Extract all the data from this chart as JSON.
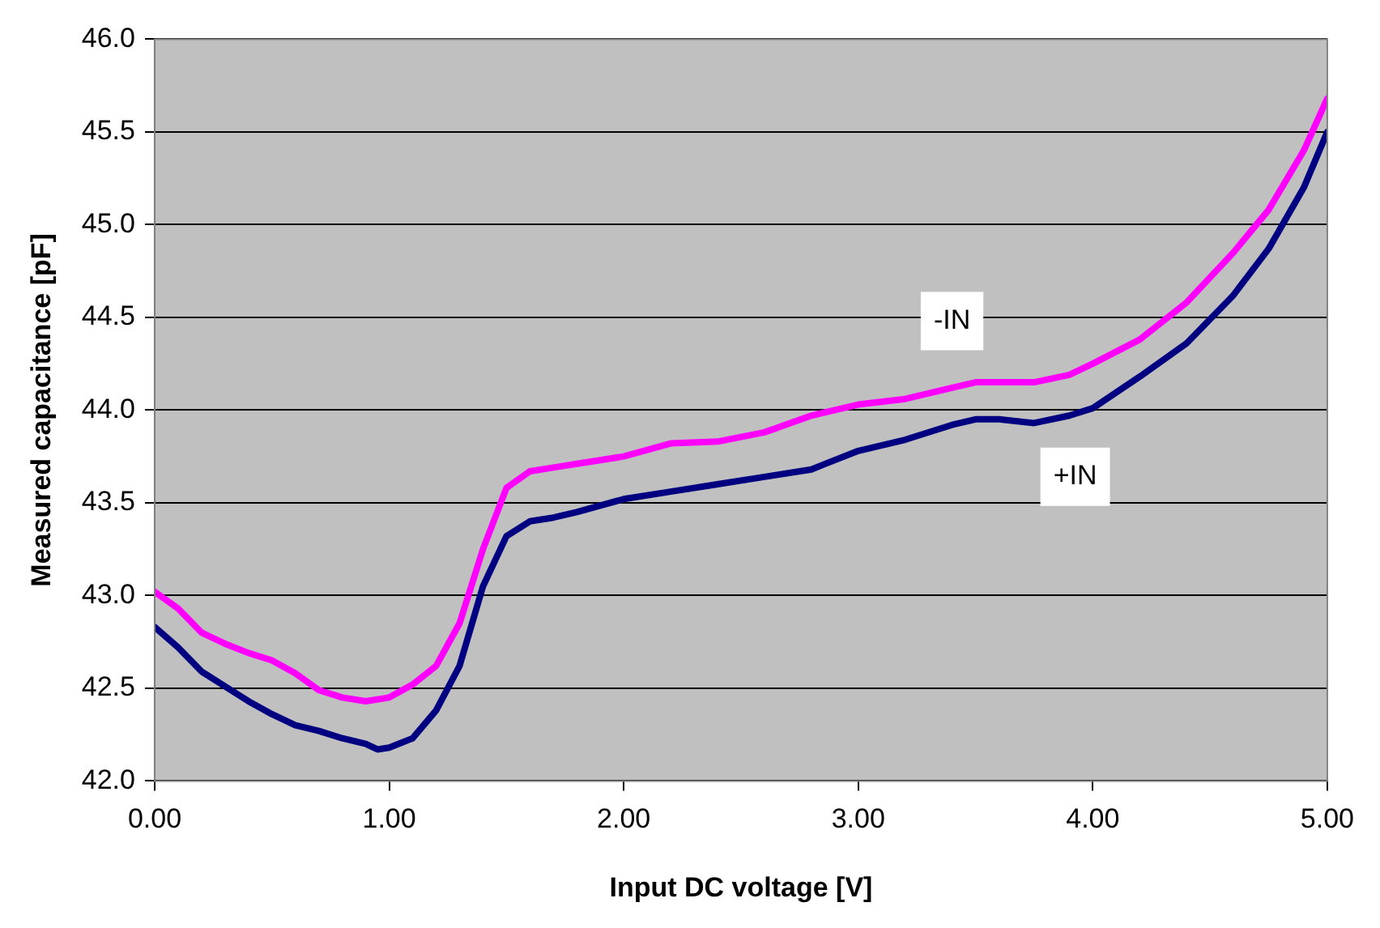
{
  "chart_data": {
    "type": "line",
    "xlabel": "Input DC voltage [V]",
    "ylabel": "Measured capacitance [pF]",
    "xlim": [
      0,
      5
    ],
    "ylim": [
      42,
      46
    ],
    "xticks": [
      {
        "value": 0,
        "label": "0.00"
      },
      {
        "value": 1,
        "label": "1.00"
      },
      {
        "value": 2,
        "label": "2.00"
      },
      {
        "value": 3,
        "label": "3.00"
      },
      {
        "value": 4,
        "label": "4.00"
      },
      {
        "value": 5,
        "label": "5.00"
      }
    ],
    "yticks": [
      {
        "value": 42,
        "label": "42.0"
      },
      {
        "value": 42.5,
        "label": "42.5"
      },
      {
        "value": 43,
        "label": "43.0"
      },
      {
        "value": 43.5,
        "label": "43.5"
      },
      {
        "value": 44,
        "label": "44.0"
      },
      {
        "value": 44.5,
        "label": "44.5"
      },
      {
        "value": 45,
        "label": "45.0"
      },
      {
        "value": 45.5,
        "label": "45.5"
      },
      {
        "value": 46,
        "label": "46.0"
      }
    ],
    "grid": "y",
    "legend": false,
    "marker": "none",
    "line_style": "solid",
    "series": [
      {
        "name": "-IN",
        "color": "#ff00ff",
        "x": [
          0,
          0.1,
          0.2,
          0.3,
          0.4,
          0.5,
          0.6,
          0.7,
          0.8,
          0.9,
          1.0,
          1.1,
          1.2,
          1.3,
          1.4,
          1.5,
          1.6,
          1.7,
          1.8,
          1.9,
          2.0,
          2.2,
          2.4,
          2.6,
          2.8,
          3.0,
          3.2,
          3.4,
          3.5,
          3.75,
          3.9,
          4.0,
          4.2,
          4.4,
          4.6,
          4.75,
          4.9,
          5.0
        ],
        "values": [
          43.02,
          42.93,
          42.8,
          42.74,
          42.69,
          42.65,
          42.58,
          42.49,
          42.45,
          42.43,
          42.45,
          42.52,
          42.62,
          42.85,
          43.25,
          43.58,
          43.67,
          43.69,
          43.71,
          43.73,
          43.75,
          43.82,
          43.83,
          43.88,
          43.97,
          44.03,
          44.06,
          44.12,
          44.15,
          44.15,
          44.19,
          44.25,
          44.38,
          44.58,
          44.85,
          45.08,
          45.4,
          45.68
        ]
      },
      {
        "name": "+IN",
        "color": "#000080",
        "x": [
          0,
          0.1,
          0.2,
          0.3,
          0.4,
          0.5,
          0.6,
          0.7,
          0.8,
          0.9,
          0.95,
          1.0,
          1.1,
          1.2,
          1.3,
          1.4,
          1.5,
          1.6,
          1.7,
          1.8,
          2.0,
          2.2,
          2.4,
          2.6,
          2.8,
          3.0,
          3.2,
          3.4,
          3.5,
          3.6,
          3.75,
          3.9,
          4.0,
          4.2,
          4.4,
          4.6,
          4.75,
          4.9,
          5.0
        ],
        "values": [
          42.83,
          42.72,
          42.59,
          42.51,
          42.43,
          42.36,
          42.3,
          42.27,
          42.23,
          42.2,
          42.17,
          42.18,
          42.23,
          42.38,
          42.62,
          43.05,
          43.32,
          43.4,
          43.42,
          43.45,
          43.52,
          43.56,
          43.6,
          43.64,
          43.68,
          43.78,
          43.84,
          43.92,
          43.95,
          43.95,
          43.93,
          43.97,
          44.01,
          44.18,
          44.36,
          44.62,
          44.87,
          45.2,
          45.5
        ]
      }
    ]
  }
}
